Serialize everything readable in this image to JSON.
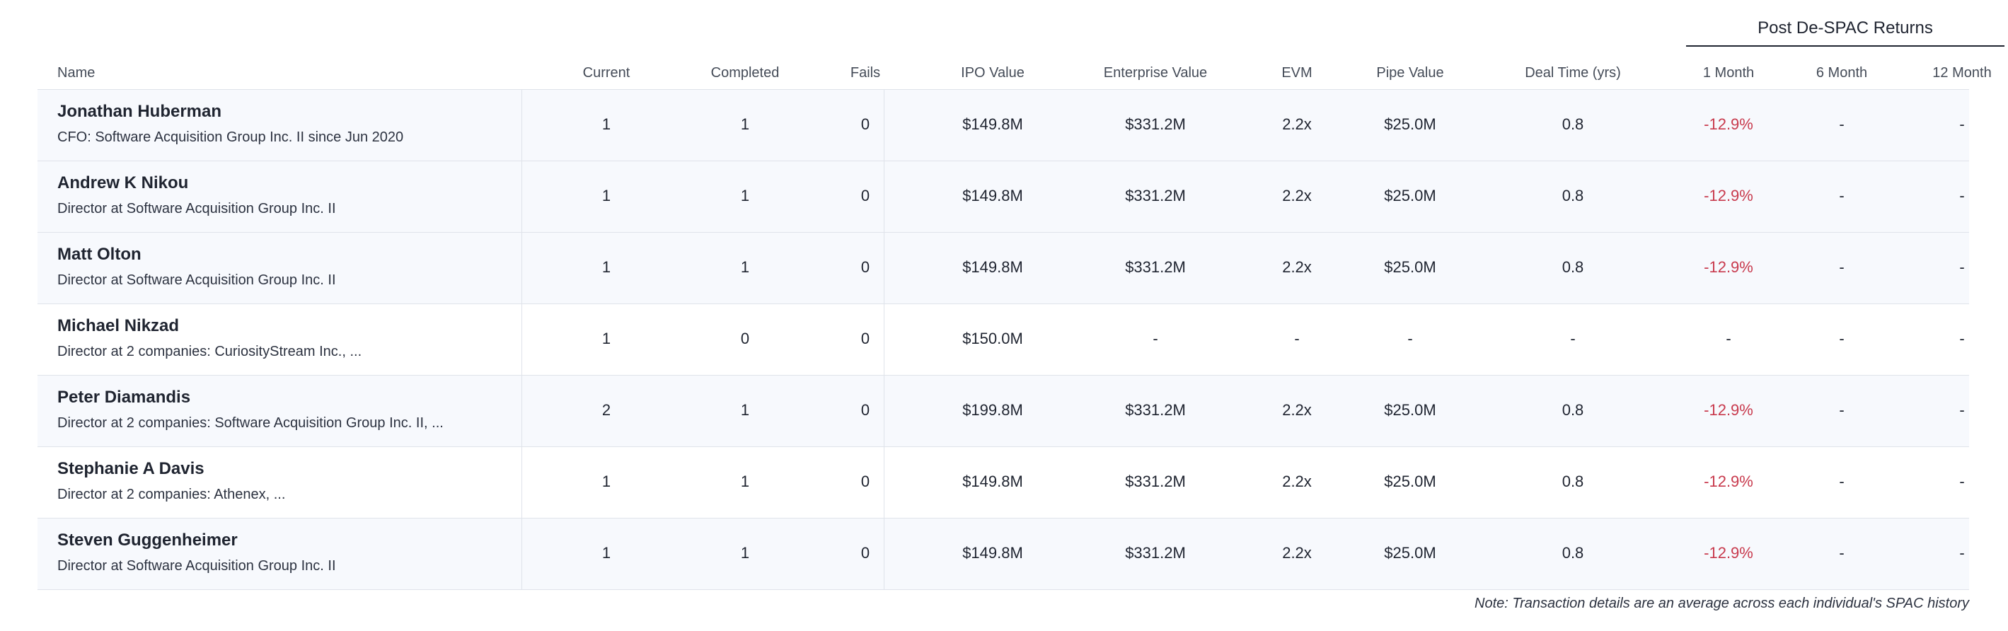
{
  "group_header": "Post De-SPAC Returns",
  "columns": {
    "name": "Name",
    "current": "Current",
    "completed": "Completed",
    "fails": "Fails",
    "ipo_value": "IPO Value",
    "enterprise_value": "Enterprise Value",
    "evm": "EVM",
    "pipe_value": "Pipe Value",
    "deal_time": "Deal Time (yrs)",
    "month1": "1 Month",
    "month6": "6 Month",
    "month12": "12 Month"
  },
  "rows": [
    {
      "name": "Jonathan Huberman",
      "subtitle": "CFO: Software Acquisition Group Inc. II since Jun 2020",
      "current": "1",
      "completed": "1",
      "fails": "0",
      "ipo_value": "$149.8M",
      "enterprise_value": "$331.2M",
      "evm": "2.2x",
      "pipe_value": "$25.0M",
      "deal_time": "0.8",
      "month1": "-12.9%",
      "month6": "-",
      "month12": "-"
    },
    {
      "name": "Andrew K Nikou",
      "subtitle": "Director at Software Acquisition Group Inc. II",
      "current": "1",
      "completed": "1",
      "fails": "0",
      "ipo_value": "$149.8M",
      "enterprise_value": "$331.2M",
      "evm": "2.2x",
      "pipe_value": "$25.0M",
      "deal_time": "0.8",
      "month1": "-12.9%",
      "month6": "-",
      "month12": "-"
    },
    {
      "name": "Matt Olton",
      "subtitle": "Director at Software Acquisition Group Inc. II",
      "current": "1",
      "completed": "1",
      "fails": "0",
      "ipo_value": "$149.8M",
      "enterprise_value": "$331.2M",
      "evm": "2.2x",
      "pipe_value": "$25.0M",
      "deal_time": "0.8",
      "month1": "-12.9%",
      "month6": "-",
      "month12": "-"
    },
    {
      "name": "Michael Nikzad",
      "subtitle": "Director at 2 companies: CuriosityStream Inc., ...",
      "current": "1",
      "completed": "0",
      "fails": "0",
      "ipo_value": "$150.0M",
      "enterprise_value": "-",
      "evm": "-",
      "pipe_value": "-",
      "deal_time": "-",
      "month1": "-",
      "month6": "-",
      "month12": "-"
    },
    {
      "name": "Peter Diamandis",
      "subtitle": "Director at 2 companies: Software Acquisition Group Inc. II, ...",
      "current": "2",
      "completed": "1",
      "fails": "0",
      "ipo_value": "$199.8M",
      "enterprise_value": "$331.2M",
      "evm": "2.2x",
      "pipe_value": "$25.0M",
      "deal_time": "0.8",
      "month1": "-12.9%",
      "month6": "-",
      "month12": "-"
    },
    {
      "name": "Stephanie A Davis",
      "subtitle": "Director at 2 companies: Athenex, ...",
      "current": "1",
      "completed": "1",
      "fails": "0",
      "ipo_value": "$149.8M",
      "enterprise_value": "$331.2M",
      "evm": "2.2x",
      "pipe_value": "$25.0M",
      "deal_time": "0.8",
      "month1": "-12.9%",
      "month6": "-",
      "month12": "-"
    },
    {
      "name": "Steven Guggenheimer",
      "subtitle": "Director at Software Acquisition Group Inc. II",
      "current": "1",
      "completed": "1",
      "fails": "0",
      "ipo_value": "$149.8M",
      "enterprise_value": "$331.2M",
      "evm": "2.2x",
      "pipe_value": "$25.0M",
      "deal_time": "0.8",
      "month1": "-12.9%",
      "month6": "-",
      "month12": "-"
    }
  ],
  "note": "Note: Transaction details are an average across each individual's SPAC history",
  "colors": {
    "negative": "#c83a4d",
    "row_alt": "#f7f9fd",
    "divider": "#dfe3ea"
  }
}
